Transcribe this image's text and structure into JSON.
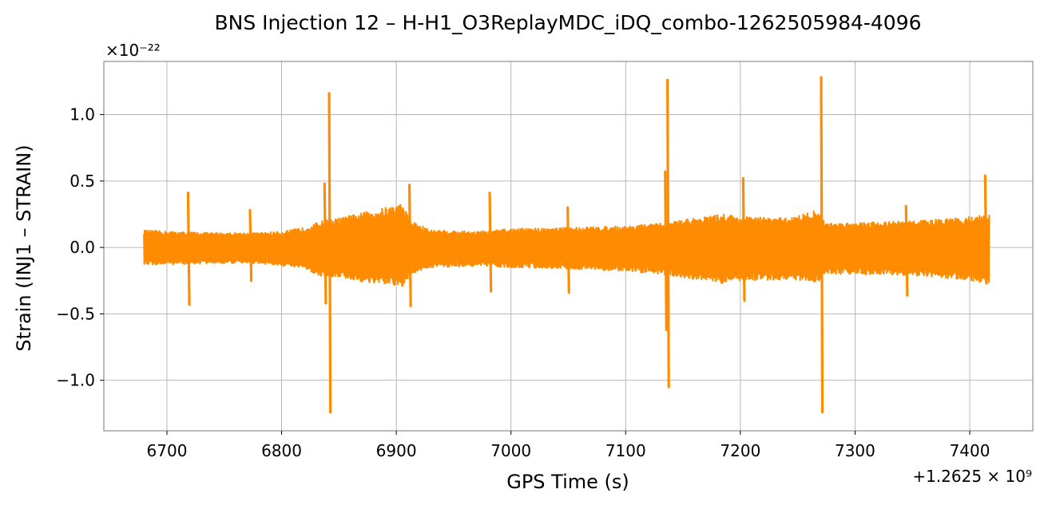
{
  "chart_data": {
    "type": "line",
    "title": "BNS Injection 12 – H-H1_O3ReplayMDC_iDQ_combo-1262505984-4096",
    "xlabel": "GPS Time (s)",
    "ylabel": "Strain (INJ1 – STRAIN)",
    "x_offset_label": "+1.2625 × 10⁹",
    "y_scale_label": "×10⁻²²",
    "x_offset": 1262500000,
    "y_scale": 1e-22,
    "xlim": [
      6645,
      7455
    ],
    "ylim": [
      -1.38,
      1.4
    ],
    "x_ticks": [
      6700,
      6800,
      6900,
      7000,
      7100,
      7200,
      7300,
      7400
    ],
    "x_tick_labels": [
      "6700",
      "6800",
      "6900",
      "7000",
      "7100",
      "7200",
      "7300",
      "7400"
    ],
    "y_ticks": [
      1.0,
      0.5,
      0.0,
      -0.5,
      -1.0
    ],
    "y_tick_labels": [
      "1.0",
      "0.5",
      "0.0",
      "−0.5",
      "−1.0"
    ],
    "grid": true,
    "line_color": "#ff8c00",
    "x_range": [
      6680,
      7417
    ],
    "envelope": [
      {
        "x": 6680,
        "hi": 0.13,
        "lo": -0.13
      },
      {
        "x": 6700,
        "hi": 0.12,
        "lo": -0.13
      },
      {
        "x": 6740,
        "hi": 0.11,
        "lo": -0.12
      },
      {
        "x": 6780,
        "hi": 0.11,
        "lo": -0.12
      },
      {
        "x": 6800,
        "hi": 0.12,
        "lo": -0.14
      },
      {
        "x": 6820,
        "hi": 0.15,
        "lo": -0.16
      },
      {
        "x": 6835,
        "hi": 0.2,
        "lo": -0.22
      },
      {
        "x": 6850,
        "hi": 0.22,
        "lo": -0.22
      },
      {
        "x": 6870,
        "hi": 0.26,
        "lo": -0.26
      },
      {
        "x": 6890,
        "hi": 0.3,
        "lo": -0.28
      },
      {
        "x": 6905,
        "hi": 0.33,
        "lo": -0.3
      },
      {
        "x": 6913,
        "hi": 0.2,
        "lo": -0.2
      },
      {
        "x": 6930,
        "hi": 0.13,
        "lo": -0.15
      },
      {
        "x": 6970,
        "hi": 0.12,
        "lo": -0.14
      },
      {
        "x": 7000,
        "hi": 0.14,
        "lo": -0.15
      },
      {
        "x": 7050,
        "hi": 0.15,
        "lo": -0.16
      },
      {
        "x": 7100,
        "hi": 0.16,
        "lo": -0.18
      },
      {
        "x": 7130,
        "hi": 0.18,
        "lo": -0.2
      },
      {
        "x": 7160,
        "hi": 0.22,
        "lo": -0.24
      },
      {
        "x": 7185,
        "hi": 0.25,
        "lo": -0.27
      },
      {
        "x": 7205,
        "hi": 0.23,
        "lo": -0.25
      },
      {
        "x": 7240,
        "hi": 0.22,
        "lo": -0.24
      },
      {
        "x": 7268,
        "hi": 0.28,
        "lo": -0.26
      },
      {
        "x": 7275,
        "hi": 0.18,
        "lo": -0.2
      },
      {
        "x": 7300,
        "hi": 0.19,
        "lo": -0.2
      },
      {
        "x": 7350,
        "hi": 0.2,
        "lo": -0.21
      },
      {
        "x": 7390,
        "hi": 0.22,
        "lo": -0.24
      },
      {
        "x": 7417,
        "hi": 0.25,
        "lo": -0.27
      }
    ],
    "spikes": [
      {
        "x": 6719,
        "hi": 0.41,
        "lo": -0.43
      },
      {
        "x": 6773,
        "hi": 0.28,
        "lo": -0.25
      },
      {
        "x": 6838,
        "hi": 0.48,
        "lo": -0.42
      },
      {
        "x": 6842,
        "hi": 1.16,
        "lo": -1.24
      },
      {
        "x": 6912,
        "hi": 0.47,
        "lo": -0.44
      },
      {
        "x": 6982,
        "hi": 0.41,
        "lo": -0.33
      },
      {
        "x": 7050,
        "hi": 0.3,
        "lo": -0.34
      },
      {
        "x": 7135,
        "hi": 0.57,
        "lo": -0.62
      },
      {
        "x": 7137,
        "hi": 1.26,
        "lo": -1.05
      },
      {
        "x": 7203,
        "hi": 0.52,
        "lo": -0.4
      },
      {
        "x": 7271,
        "hi": 1.28,
        "lo": -1.24
      },
      {
        "x": 7345,
        "hi": 0.31,
        "lo": -0.36
      },
      {
        "x": 7414,
        "hi": 0.54,
        "lo": -0.27
      }
    ]
  }
}
